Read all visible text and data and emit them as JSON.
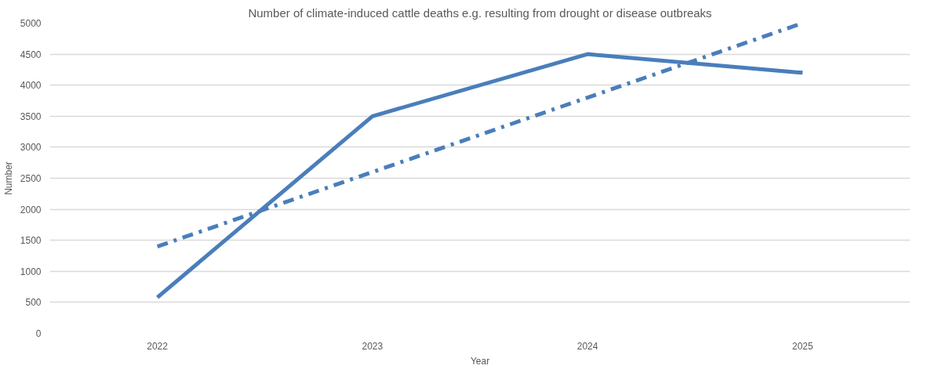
{
  "chart_data": {
    "type": "line",
    "title": "Number of climate-induced cattle deaths e.g. resulting from drought or disease outbreaks",
    "xlabel": "Year",
    "ylabel": "Number",
    "categories": [
      "2022",
      "2023",
      "2024",
      "2025"
    ],
    "series": [
      {
        "color": "#4a7ebb",
        "values": [
          580,
          3500,
          4500,
          4200
        ],
        "line_style": "solid"
      },
      {
        "color": "#4a7ebb",
        "values": [
          1400,
          2600,
          3800,
          5000
        ],
        "line_style": "dashed"
      }
    ],
    "ylim": [
      0,
      5000
    ],
    "yticks": [
      0,
      500,
      1000,
      1500,
      2000,
      2500,
      3000,
      3500,
      4000,
      4500,
      5000
    ],
    "grid": "y"
  }
}
